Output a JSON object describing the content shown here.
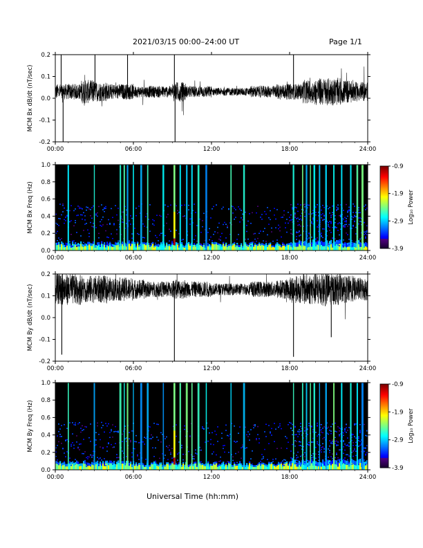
{
  "header": {
    "title": "2021/03/15  00:00–24:00 UT",
    "page": "Page 1/1"
  },
  "xlabel": "Universal Time (hh:mm)",
  "chart_data": [
    {
      "type": "line",
      "ylabel": "MCM Bx dB/dt (nT/sec)",
      "xlim": [
        0,
        24
      ],
      "ylim": [
        -0.2,
        0.2
      ],
      "x_ticks": [
        "00:00",
        "06:00",
        "12:00",
        "18:00",
        "24:00"
      ],
      "y_ticks": [
        "0.2",
        "0.1",
        "0.0",
        "-0.1",
        "-0.2"
      ],
      "baseline": 0.03,
      "noise_by_hour": [
        0.02,
        0.02,
        0.03,
        0.025,
        0.02,
        0.02,
        0.015,
        0.015,
        0.015,
        0.025,
        0.015,
        0.015,
        0.01,
        0.01,
        0.01,
        0.015,
        0.015,
        0.02,
        0.02,
        0.03,
        0.035,
        0.035,
        0.03,
        0.025
      ],
      "spikes": [
        {
          "t": 0.45,
          "y": 0.22
        },
        {
          "t": 0.6,
          "y": -0.22
        },
        {
          "t": 3.05,
          "y": 0.22
        },
        {
          "t": 5.55,
          "y": 0.22
        },
        {
          "t": 9.15,
          "y": 0.22
        },
        {
          "t": 9.2,
          "y": -0.2
        },
        {
          "t": 18.3,
          "y": 0.22
        }
      ]
    },
    {
      "type": "heatmap",
      "ylabel": "MCM Bx Freq (Hz)",
      "xlim": [
        0,
        24
      ],
      "ylim": [
        0,
        1.0
      ],
      "x_ticks": [
        "00:00",
        "06:00",
        "12:00",
        "18:00",
        "24:00"
      ],
      "y_ticks": [
        "1.0",
        "0.8",
        "0.6",
        "0.4",
        "0.2",
        "0.0"
      ],
      "colorbar": {
        "label": "Log₁₀ Power",
        "ticks": [
          "-0.9",
          "-1.9",
          "-2.9",
          "-3.9"
        ],
        "range": [
          -3.9,
          -0.9
        ]
      },
      "streaks": [
        1.0,
        3.0,
        5.0,
        5.3,
        5.55,
        6.0,
        6.6,
        7.1,
        8.3,
        9.15,
        9.6,
        10.1,
        10.5,
        11.0,
        11.6,
        13.5,
        14.5,
        18.3,
        19.0,
        19.3,
        19.6,
        19.9,
        20.3,
        20.8,
        21.4,
        22.0,
        22.7,
        23.2,
        23.6
      ],
      "hot_line": 9.15
    },
    {
      "type": "line",
      "ylabel": "MCM By dB/dt (nT/sec)",
      "xlim": [
        0,
        24
      ],
      "ylim": [
        -0.2,
        0.2
      ],
      "x_ticks": [
        "00:00",
        "06:00",
        "12:00",
        "18:00",
        "24:00"
      ],
      "y_ticks": [
        "0.2",
        "0.1",
        "0.0",
        "-0.1",
        "-0.2"
      ],
      "baseline": 0.13,
      "noise_by_hour": [
        0.04,
        0.04,
        0.035,
        0.035,
        0.03,
        0.03,
        0.025,
        0.02,
        0.02,
        0.025,
        0.02,
        0.02,
        0.015,
        0.015,
        0.015,
        0.02,
        0.02,
        0.025,
        0.035,
        0.04,
        0.045,
        0.04,
        0.035,
        0.03
      ],
      "spikes": [
        {
          "t": 0.5,
          "y": -0.17
        },
        {
          "t": 0.55,
          "y": 0.22
        },
        {
          "t": 9.15,
          "y": -0.2
        },
        {
          "t": 18.3,
          "y": -0.18
        },
        {
          "t": 21.2,
          "y": -0.09
        }
      ]
    },
    {
      "type": "heatmap",
      "ylabel": "MCM By Freq (Hz)",
      "xlim": [
        0,
        24
      ],
      "ylim": [
        0,
        1.0
      ],
      "x_ticks": [
        "00:00",
        "06:00",
        "12:00",
        "18:00",
        "24:00"
      ],
      "y_ticks": [
        "1.0",
        "0.8",
        "0.6",
        "0.4",
        "0.2",
        "0.0"
      ],
      "colorbar": {
        "label": "Log₁₀ Power",
        "ticks": [
          "-0.9",
          "-1.9",
          "-2.9",
          "-3.9"
        ],
        "range": [
          -3.9,
          -0.9
        ]
      },
      "streaks": [
        1.0,
        3.0,
        5.0,
        5.3,
        5.55,
        6.0,
        6.6,
        7.1,
        8.3,
        9.15,
        9.6,
        10.1,
        10.5,
        11.0,
        11.6,
        13.5,
        14.5,
        18.3,
        19.0,
        19.3,
        19.6,
        19.9,
        20.3,
        20.8,
        21.4,
        22.0,
        22.7,
        23.2,
        23.6
      ],
      "hot_line": 9.15
    }
  ]
}
